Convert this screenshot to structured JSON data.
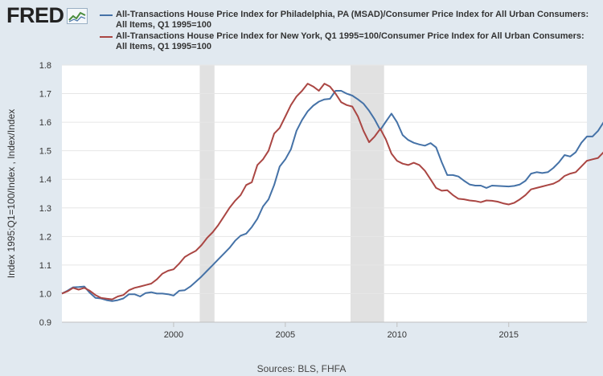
{
  "logo": {
    "text": "FRED",
    "icon": "fred-line-chart-icon"
  },
  "source": "Sources: BLS, FHFA",
  "chart_data": {
    "type": "line",
    "ylabel": "Index 1995:Q1=100/Index , Index/Index",
    "xlim": [
      1995.0,
      2018.5
    ],
    "ylim": [
      0.9,
      1.8
    ],
    "yticks": [
      "0.9",
      "1.0",
      "1.1",
      "1.2",
      "1.3",
      "1.4",
      "1.5",
      "1.6",
      "1.7",
      "1.8"
    ],
    "xticks": [
      "2000",
      "2005",
      "2010",
      "2015"
    ],
    "grid": true,
    "legend_position": "top",
    "recessions": [
      [
        2001.17,
        2001.83
      ],
      [
        2007.92,
        2009.42
      ]
    ],
    "series": [
      {
        "name": "All-Transactions House Price Index for Philadelphia, PA (MSAD)/Consumer Price Index for All Urban Consumers: All Items, Q1 1995=100",
        "color": "#4572a7",
        "start": 1995.0,
        "step": 0.25,
        "values": [
          1.0,
          1.01,
          1.022,
          1.023,
          1.025,
          1.003,
          0.985,
          0.983,
          0.977,
          0.974,
          0.977,
          0.983,
          0.998,
          0.998,
          0.99,
          1.002,
          1.005,
          1.0,
          1.0,
          0.998,
          0.993,
          1.01,
          1.012,
          1.025,
          1.042,
          1.06,
          1.08,
          1.1,
          1.12,
          1.14,
          1.16,
          1.185,
          1.203,
          1.21,
          1.233,
          1.262,
          1.305,
          1.33,
          1.38,
          1.445,
          1.47,
          1.505,
          1.57,
          1.608,
          1.638,
          1.658,
          1.672,
          1.68,
          1.682,
          1.71,
          1.71,
          1.7,
          1.693,
          1.68,
          1.665,
          1.64,
          1.61,
          1.573,
          1.602,
          1.63,
          1.6,
          1.555,
          1.538,
          1.528,
          1.522,
          1.518,
          1.527,
          1.512,
          1.46,
          1.415,
          1.415,
          1.41,
          1.395,
          1.382,
          1.378,
          1.378,
          1.37,
          1.378,
          1.377,
          1.376,
          1.375,
          1.377,
          1.382,
          1.395,
          1.42,
          1.425,
          1.422,
          1.425,
          1.44,
          1.46,
          1.485,
          1.48,
          1.495,
          1.528,
          1.55,
          1.55,
          1.57,
          1.6,
          1.615
        ]
      },
      {
        "name": "All-Transactions House Price Index for New York, Q1 1995=100/Consumer Price Index for All Urban Consumers: All Items, Q1 1995=100",
        "color": "#aa4643",
        "start": 1995.0,
        "step": 0.25,
        "values": [
          1.0,
          1.008,
          1.02,
          1.014,
          1.02,
          1.01,
          0.995,
          0.985,
          0.982,
          0.98,
          0.99,
          0.995,
          1.012,
          1.02,
          1.025,
          1.03,
          1.035,
          1.05,
          1.07,
          1.08,
          1.085,
          1.105,
          1.128,
          1.14,
          1.15,
          1.17,
          1.195,
          1.215,
          1.24,
          1.27,
          1.3,
          1.325,
          1.345,
          1.38,
          1.39,
          1.45,
          1.47,
          1.5,
          1.56,
          1.58,
          1.62,
          1.66,
          1.69,
          1.71,
          1.735,
          1.725,
          1.71,
          1.735,
          1.725,
          1.7,
          1.67,
          1.66,
          1.655,
          1.62,
          1.57,
          1.53,
          1.55,
          1.577,
          1.54,
          1.49,
          1.465,
          1.455,
          1.45,
          1.458,
          1.45,
          1.43,
          1.4,
          1.37,
          1.36,
          1.362,
          1.345,
          1.332,
          1.33,
          1.326,
          1.324,
          1.32,
          1.326,
          1.325,
          1.322,
          1.316,
          1.312,
          1.318,
          1.33,
          1.345,
          1.365,
          1.37,
          1.375,
          1.38,
          1.385,
          1.395,
          1.412,
          1.42,
          1.425,
          1.445,
          1.465,
          1.47,
          1.475,
          1.495,
          1.515
        ]
      }
    ]
  }
}
